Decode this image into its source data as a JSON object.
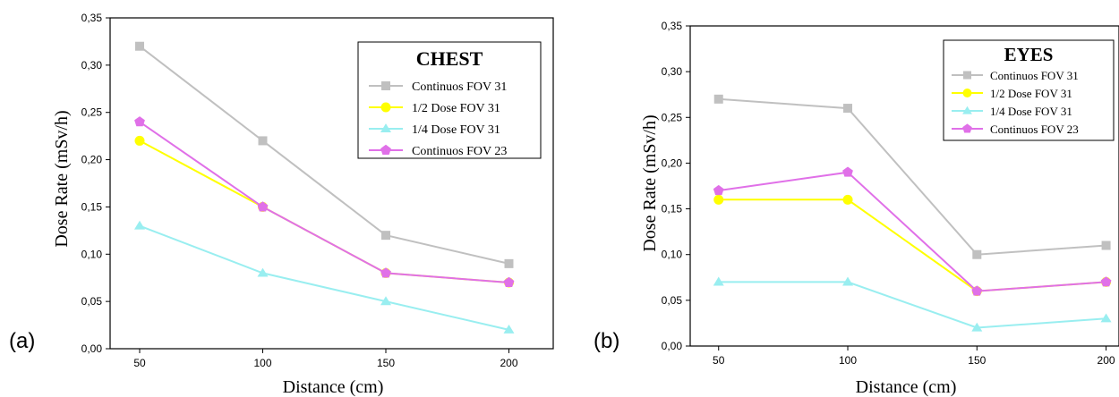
{
  "colors": {
    "continuos_fov31": "#c0c0c0",
    "half_dose_fov31": "#ffff00",
    "quarter_dose_fov31": "#99eef0",
    "continuos_fov23": "#e070e8",
    "axis": "#000000",
    "background": "#ffffff"
  },
  "chart_data": [
    {
      "type": "line",
      "panel_label": "(a)",
      "legend_title": "CHEST",
      "xlabel": "Distance (cm)",
      "ylabel": "Dose Rate (mSv/h)",
      "x": [
        50,
        100,
        150,
        200
      ],
      "x_ticks": [
        "50",
        "100",
        "150",
        "200"
      ],
      "y_ticks": [
        "0,00",
        "0,05",
        "0,10",
        "0,15",
        "0,20",
        "0,25",
        "0,30",
        "0,35"
      ],
      "xlim": [
        38,
        218
      ],
      "ylim": [
        0,
        0.35
      ],
      "legend_position": "top-right",
      "grid": false,
      "series": [
        {
          "name": "Continuos FOV 31",
          "marker": "square",
          "color": "#c0c0c0",
          "values": [
            0.32,
            0.22,
            0.12,
            0.09
          ]
        },
        {
          "name": "1/2 Dose FOV 31",
          "marker": "circle",
          "color": "#ffff00",
          "values": [
            0.22,
            0.15,
            0.08,
            0.07
          ]
        },
        {
          "name": "1/4 Dose FOV 31",
          "marker": "triangle",
          "color": "#99eef0",
          "values": [
            0.13,
            0.08,
            0.05,
            0.02
          ]
        },
        {
          "name": "Continuos FOV 23",
          "marker": "pentagon",
          "color": "#e070e8",
          "values": [
            0.24,
            0.15,
            0.08,
            0.07
          ]
        }
      ]
    },
    {
      "type": "line",
      "panel_label": "(b)",
      "legend_title": "EYES",
      "xlabel": "Distance (cm)",
      "ylabel": "Dose Rate (mSv/h)",
      "x": [
        50,
        100,
        150,
        200
      ],
      "x_ticks": [
        "50",
        "100",
        "150",
        "200"
      ],
      "y_ticks": [
        "0,00",
        "0,05",
        "0,10",
        "0,15",
        "0,20",
        "0,25",
        "0,30",
        "0,35"
      ],
      "xlim": [
        39,
        205
      ],
      "ylim": [
        0,
        0.35
      ],
      "legend_position": "top-right",
      "grid": false,
      "series": [
        {
          "name": "Continuos FOV 31",
          "marker": "square",
          "color": "#c0c0c0",
          "values": [
            0.27,
            0.26,
            0.1,
            0.11
          ]
        },
        {
          "name": "1/2 Dose FOV 31",
          "marker": "circle",
          "color": "#ffff00",
          "values": [
            0.16,
            0.16,
            0.06,
            0.07
          ]
        },
        {
          "name": "1/4 Dose FOV 31",
          "marker": "triangle",
          "color": "#99eef0",
          "values": [
            0.07,
            0.07,
            0.02,
            0.03
          ]
        },
        {
          "name": "Continuos FOV 23",
          "marker": "pentagon",
          "color": "#e070e8",
          "values": [
            0.17,
            0.19,
            0.06,
            0.07
          ]
        }
      ]
    }
  ]
}
